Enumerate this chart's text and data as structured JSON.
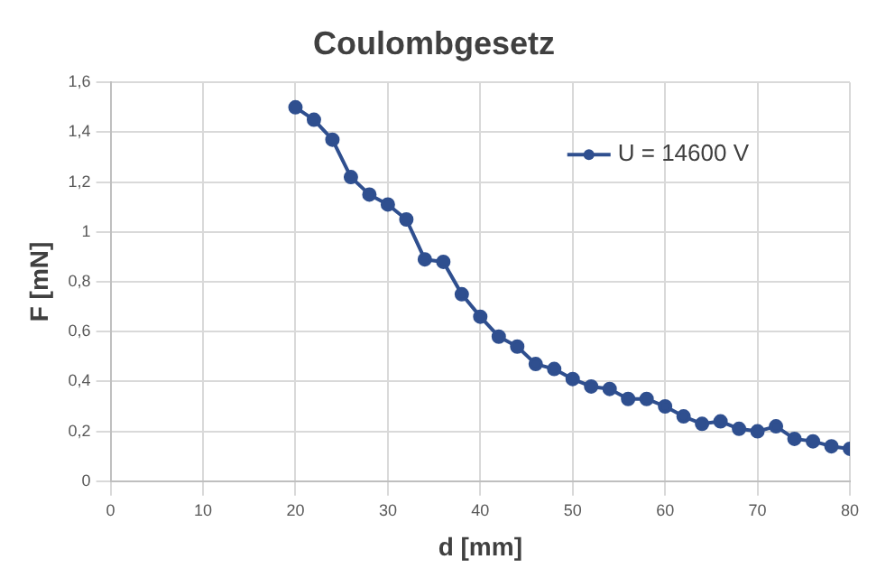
{
  "chart_data": {
    "type": "line",
    "title": "Coulombgesetz",
    "xlabel": "d [mm]",
    "ylabel": "F [mN]",
    "x": [
      20,
      22,
      24,
      26,
      28,
      30,
      32,
      34,
      36,
      38,
      40,
      42,
      44,
      46,
      48,
      50,
      52,
      54,
      56,
      58,
      60,
      62,
      64,
      66,
      68,
      70,
      72,
      74,
      76,
      78,
      80
    ],
    "series": [
      {
        "name": "U = 14600 V",
        "color": "#2f4f8f",
        "values": [
          1.5,
          1.45,
          1.37,
          1.22,
          1.15,
          1.11,
          1.05,
          0.89,
          0.88,
          0.75,
          0.66,
          0.58,
          0.54,
          0.47,
          0.45,
          0.41,
          0.38,
          0.37,
          0.33,
          0.33,
          0.3,
          0.26,
          0.23,
          0.24,
          0.21,
          0.2,
          0.22,
          0.17,
          0.16,
          0.14,
          0.13
        ]
      }
    ],
    "xlim": [
      0,
      80
    ],
    "xticks": [
      0,
      10,
      20,
      30,
      40,
      50,
      60,
      70,
      80
    ],
    "ylim": [
      0,
      1.6
    ],
    "yticks": [
      0,
      {
        "value": 0.2,
        "label": "0,2"
      },
      {
        "value": 0.4,
        "label": "0,4"
      },
      {
        "value": 0.6,
        "label": "0,6"
      },
      {
        "value": 0.8,
        "label": "0,8"
      },
      1,
      {
        "value": 1.2,
        "label": "1,2"
      },
      {
        "value": 1.4,
        "label": "1,4"
      },
      {
        "value": 1.6,
        "label": "1,6"
      }
    ],
    "grid": true,
    "legend": "top right",
    "marker": "circle",
    "line_style": "solid"
  }
}
